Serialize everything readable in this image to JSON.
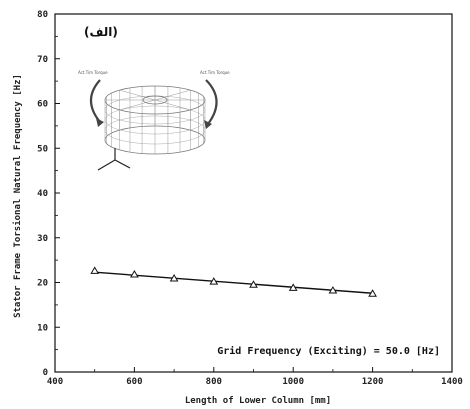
{
  "chart_data": {
    "type": "line",
    "title": "",
    "xlabel": "Length of Lower Column [mm]",
    "ylabel": "Stator Frame Torsional Natural Frequency [Hz]",
    "xlim": [
      400,
      1400
    ],
    "ylim": [
      0,
      80
    ],
    "xticks": [
      400,
      600,
      800,
      1000,
      1200,
      1400
    ],
    "yticks": [
      0,
      10,
      20,
      30,
      40,
      50,
      60,
      70,
      80
    ],
    "grid": false,
    "legend": "none",
    "marker": "triangle-open",
    "series": [
      {
        "x": [
          500,
          600,
          700,
          800,
          900,
          1000,
          1100,
          1200
        ],
        "values": [
          22.6,
          21.8,
          20.9,
          20.2,
          19.5,
          18.8,
          18.2,
          17.5
        ]
      }
    ],
    "fit_line": {
      "x": [
        500,
        1200
      ],
      "y": [
        22.3,
        17.6
      ]
    },
    "annotation": "Grid Frequency (Exciting) = 50.0 [Hz]",
    "panel_label": "(الف)",
    "inset_labels": [
      "Act.Tim Torque",
      "Act.Tim Torque"
    ]
  }
}
